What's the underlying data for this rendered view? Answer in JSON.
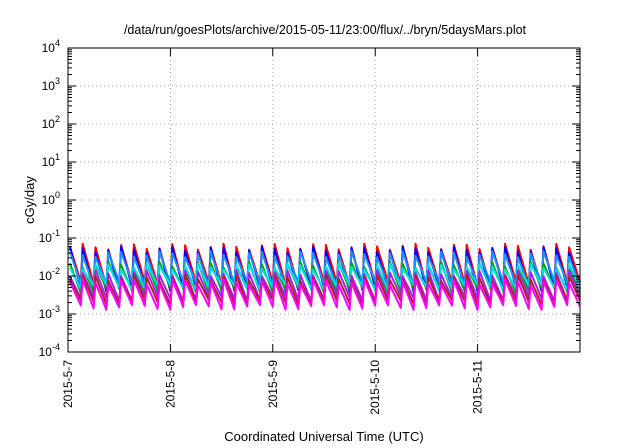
{
  "chart_data": {
    "type": "line",
    "title": "/data/run/goesPlots/archive/2015-05-11/23:00/flux/../bryn/5daysMars.plot",
    "xlabel": "Coordinated Universal Time (UTC)",
    "ylabel": "cGy/day",
    "y_scale": "log",
    "ylim": [
      0.0001,
      10000
    ],
    "y_ticks": [
      {
        "base": "10",
        "exp": "-4",
        "value": 0.0001
      },
      {
        "base": "10",
        "exp": "-3",
        "value": 0.001
      },
      {
        "base": "10",
        "exp": "-2",
        "value": 0.01
      },
      {
        "base": "10",
        "exp": "-1",
        "value": 0.1
      },
      {
        "base": "10",
        "exp": "0",
        "value": 1
      },
      {
        "base": "10",
        "exp": "1",
        "value": 10
      },
      {
        "base": "10",
        "exp": "2",
        "value": 100
      },
      {
        "base": "10",
        "exp": "3",
        "value": 1000
      },
      {
        "base": "10",
        "exp": "4",
        "value": 10000
      }
    ],
    "xlim": [
      "2015-05-07 00:00",
      "2015-05-11 23:59"
    ],
    "x_ticks": [
      "2015-5-7",
      "2015-5-8",
      "2015-5-9",
      "2015-5-10",
      "2015-5-11"
    ],
    "grid": true,
    "cycle_hours": 3,
    "series": [
      {
        "color": "#ff0000",
        "peak": 0.06,
        "trough": 0.006
      },
      {
        "color": "#0000ff",
        "peak": 0.05,
        "trough": 0.0045
      },
      {
        "color": "#1e90ff",
        "peak": 0.038,
        "trough": 0.0062
      },
      {
        "color": "#00a000",
        "peak": 0.02,
        "trough": 0.0042
      },
      {
        "color": "#00e0e0",
        "peak": 0.018,
        "trough": 0.005
      },
      {
        "color": "#a020f0",
        "peak": 0.012,
        "trough": 0.0025
      },
      {
        "color": "#b22222",
        "peak": 0.009,
        "trough": 0.002
      },
      {
        "color": "#ff00ff",
        "peak": 0.007,
        "trough": 0.0015
      }
    ]
  }
}
